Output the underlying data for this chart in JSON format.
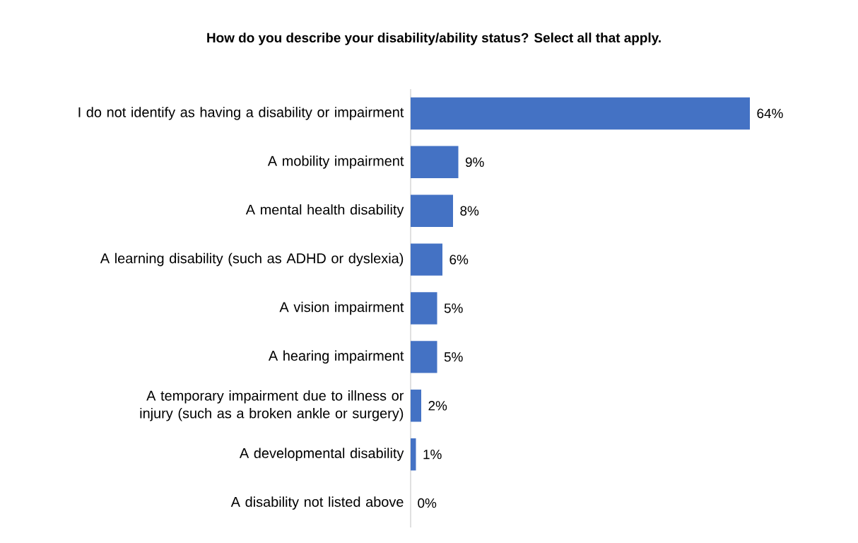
{
  "chart_data": {
    "type": "bar",
    "orientation": "horizontal",
    "title": "How do you describe your disability/ability status? Select all that apply.",
    "categories": [
      "I do not identify as having a disability or impairment",
      "A mobility impairment",
      "A mental health disability",
      "A learning disability (such as ADHD or dyslexia)",
      "A vision impairment",
      "A hearing impairment",
      "A temporary impairment due to illness or injury (such as a broken ankle or surgery)",
      "A developmental disability",
      "A disability not listed above"
    ],
    "values": [
      64,
      9,
      8,
      6,
      5,
      5,
      2,
      1,
      0
    ],
    "value_labels": [
      "64%",
      "9%",
      "8%",
      "6%",
      "5%",
      "5%",
      "2%",
      "1%",
      "0%"
    ],
    "color": "#4472c4"
  }
}
